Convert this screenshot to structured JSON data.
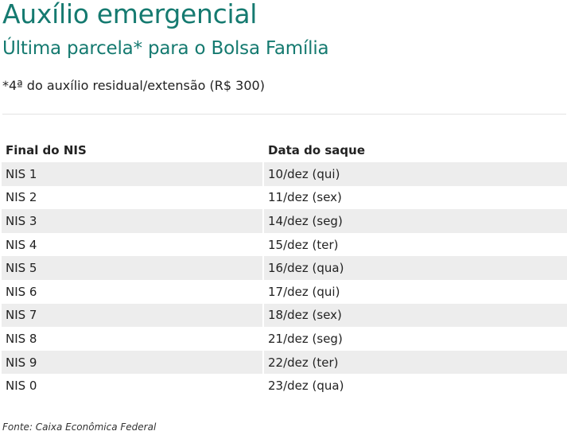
{
  "title": "Auxílio emergencial",
  "subtitle": "Última parcela* para o Bolsa Família",
  "note": "*4ª do auxílio residual/extensão (R$ 300)",
  "accent_color": "#157a70",
  "table": {
    "headers": [
      "Final do NIS",
      "Data do saque"
    ],
    "rows": [
      [
        "NIS 1",
        "10/dez (qui)"
      ],
      [
        "NIS 2",
        "11/dez (sex)"
      ],
      [
        "NIS 3",
        "14/dez (seg)"
      ],
      [
        "NIS 4",
        "15/dez (ter)"
      ],
      [
        "NIS 5",
        "16/dez (qua)"
      ],
      [
        "NIS 6",
        "17/dez (qui)"
      ],
      [
        "NIS 7",
        "18/dez (sex)"
      ],
      [
        "NIS 8",
        "21/dez (seg)"
      ],
      [
        "NIS 9",
        "22/dez (ter)"
      ],
      [
        "NIS 0",
        "23/dez (qua)"
      ]
    ]
  },
  "source": "Fonte: Caixa Econômica Federal"
}
